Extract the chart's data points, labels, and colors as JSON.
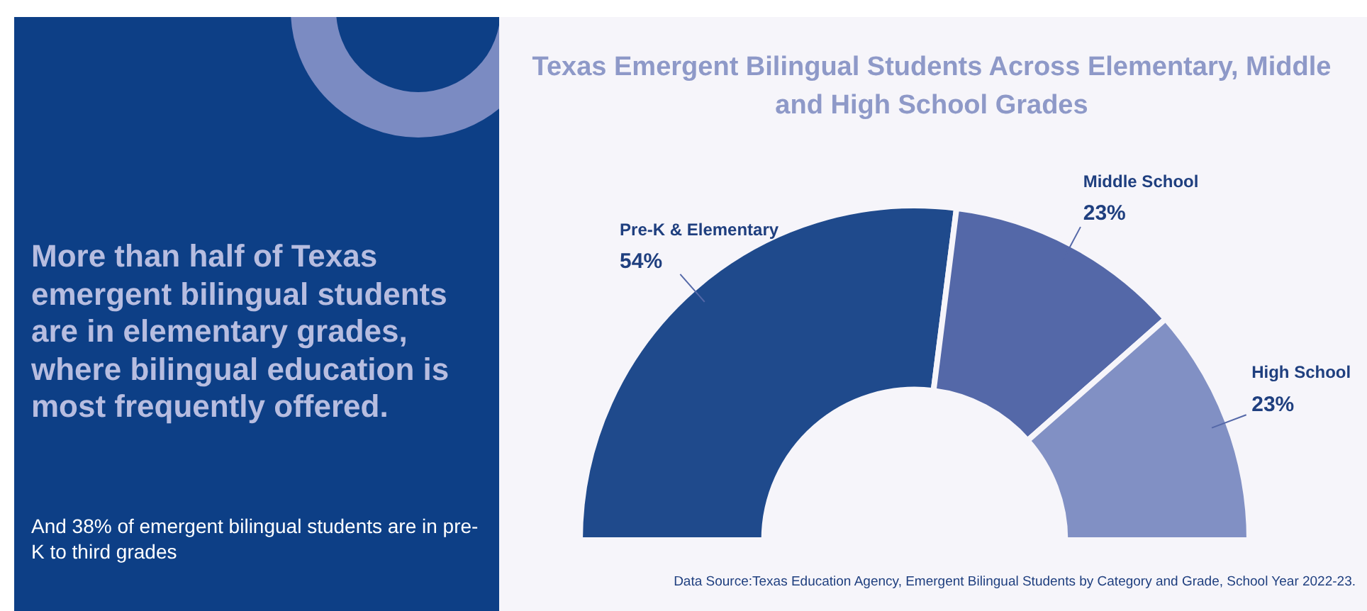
{
  "chart_data": {
    "type": "donut",
    "title": "Texas Emergent Bilingual Students Across Elementary, Middle and High School Grades",
    "subtitle": "More than half of Texas emergent bilingual students are in elementary grades, where bilingual education is most frequently offered.",
    "annotations": [
      "And 38% of emergent bilingual students are in pre-K to third grades",
      "Data Source:Texas Education Agency, Emergent Bilingual Students by Category and Grade, School Year 2022-23."
    ],
    "categories": [
      "Pre-K & Elementary",
      "Middle School",
      "High School"
    ],
    "values": [
      54,
      23,
      23
    ],
    "value_labels": [
      "54%",
      "23%",
      "23%"
    ],
    "colors": [
      "#1f4a8c",
      "#5468a8",
      "#8190c4"
    ],
    "legend": false
  }
}
